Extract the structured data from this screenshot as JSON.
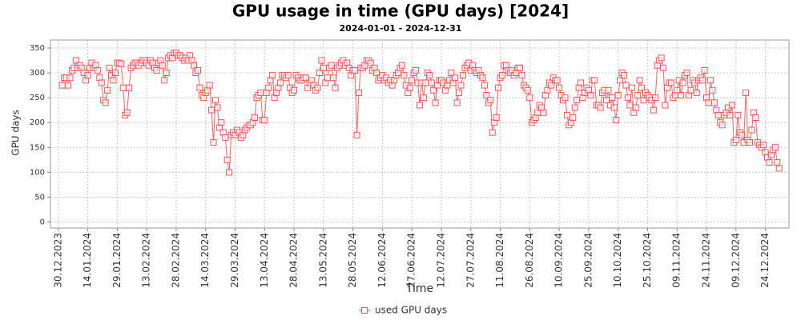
{
  "chart_data": {
    "type": "line",
    "title": "GPU usage in time (GPU days) [2024]",
    "subtitle": "2024-01-01 - 2024-12-31",
    "x_label": "Time",
    "y_label": "GPU days",
    "grid": true,
    "legend": "bottom",
    "xlim": [
      "2023-12-26",
      "2025-01-05"
    ],
    "xticks": [
      {
        "value": "2023-12-30",
        "label": "30.12.2023"
      },
      {
        "value": "2024-01-14",
        "label": "14.01.2024"
      },
      {
        "value": "2024-01-29",
        "label": "29.01.2024"
      },
      {
        "value": "2024-02-13",
        "label": "13.02.2024"
      },
      {
        "value": "2024-02-28",
        "label": "28.02.2024"
      },
      {
        "value": "2024-03-14",
        "label": "14.03.2024"
      },
      {
        "value": "2024-03-29",
        "label": "29.03.2024"
      },
      {
        "value": "2024-04-13",
        "label": "13.04.2024"
      },
      {
        "value": "2024-04-28",
        "label": "28.04.2024"
      },
      {
        "value": "2024-05-13",
        "label": "13.05.2024"
      },
      {
        "value": "2024-05-28",
        "label": "28.05.2024"
      },
      {
        "value": "2024-06-12",
        "label": "12.06.2024"
      },
      {
        "value": "2024-06-27",
        "label": "27.06.2024"
      },
      {
        "value": "2024-07-12",
        "label": "12.07.2024"
      },
      {
        "value": "2024-07-27",
        "label": "27.07.2024"
      },
      {
        "value": "2024-08-11",
        "label": "11.08.2024"
      },
      {
        "value": "2024-08-26",
        "label": "26.08.2024"
      },
      {
        "value": "2024-09-10",
        "label": "10.09.2024"
      },
      {
        "value": "2024-09-25",
        "label": "25.09.2024"
      },
      {
        "value": "2024-10-10",
        "label": "10.10.2024"
      },
      {
        "value": "2024-10-25",
        "label": "25.10.2024"
      },
      {
        "value": "2024-11-09",
        "label": "09.11.2024"
      },
      {
        "value": "2024-11-24",
        "label": "24.11.2024"
      },
      {
        "value": "2024-12-09",
        "label": "09.12.2024"
      },
      {
        "value": "2024-12-24",
        "label": "24.12.2024"
      }
    ],
    "ylim": [
      -12,
      366
    ],
    "yticks": [
      0,
      50,
      100,
      150,
      200,
      250,
      300,
      350
    ],
    "x": [
      "2024-01-01",
      "2024-01-02",
      "2024-01-03",
      "2024-01-04",
      "2024-01-05",
      "2024-01-06",
      "2024-01-07",
      "2024-01-08",
      "2024-01-09",
      "2024-01-10",
      "2024-01-11",
      "2024-01-12",
      "2024-01-13",
      "2024-01-14",
      "2024-01-15",
      "2024-01-16",
      "2024-01-17",
      "2024-01-18",
      "2024-01-19",
      "2024-01-20",
      "2024-01-21",
      "2024-01-22",
      "2024-01-23",
      "2024-01-24",
      "2024-01-25",
      "2024-01-26",
      "2024-01-27",
      "2024-01-28",
      "2024-01-29",
      "2024-01-30",
      "2024-01-31",
      "2024-02-01",
      "2024-02-02",
      "2024-02-03",
      "2024-02-04",
      "2024-02-05",
      "2024-02-06",
      "2024-02-07",
      "2024-02-08",
      "2024-02-09",
      "2024-02-10",
      "2024-02-11",
      "2024-02-12",
      "2024-02-13",
      "2024-02-14",
      "2024-02-15",
      "2024-02-16",
      "2024-02-17",
      "2024-02-18",
      "2024-02-19",
      "2024-02-20",
      "2024-02-21",
      "2024-02-22",
      "2024-02-23",
      "2024-02-24",
      "2024-02-25",
      "2024-02-26",
      "2024-02-27",
      "2024-02-28",
      "2024-02-29",
      "2024-03-01",
      "2024-03-02",
      "2024-03-03",
      "2024-03-04",
      "2024-03-05",
      "2024-03-06",
      "2024-03-07",
      "2024-03-08",
      "2024-03-09",
      "2024-03-10",
      "2024-03-11",
      "2024-03-12",
      "2024-03-13",
      "2024-03-14",
      "2024-03-15",
      "2024-03-16",
      "2024-03-17",
      "2024-03-18",
      "2024-03-19",
      "2024-03-20",
      "2024-03-21",
      "2024-03-22",
      "2024-03-23",
      "2024-03-24",
      "2024-03-25",
      "2024-03-26",
      "2024-03-27",
      "2024-03-28",
      "2024-03-29",
      "2024-03-30",
      "2024-03-31",
      "2024-04-01",
      "2024-04-02",
      "2024-04-03",
      "2024-04-04",
      "2024-04-05",
      "2024-04-06",
      "2024-04-07",
      "2024-04-08",
      "2024-04-09",
      "2024-04-10",
      "2024-04-11",
      "2024-04-12",
      "2024-04-13",
      "2024-04-14",
      "2024-04-15",
      "2024-04-16",
      "2024-04-17",
      "2024-04-18",
      "2024-04-19",
      "2024-04-20",
      "2024-04-21",
      "2024-04-22",
      "2024-04-23",
      "2024-04-24",
      "2024-04-25",
      "2024-04-26",
      "2024-04-27",
      "2024-04-28",
      "2024-04-29",
      "2024-04-30",
      "2024-05-01",
      "2024-05-02",
      "2024-05-03",
      "2024-05-04",
      "2024-05-05",
      "2024-05-06",
      "2024-05-07",
      "2024-05-08",
      "2024-05-09",
      "2024-05-10",
      "2024-05-11",
      "2024-05-12",
      "2024-05-13",
      "2024-05-14",
      "2024-05-15",
      "2024-05-16",
      "2024-05-17",
      "2024-05-18",
      "2024-05-19",
      "2024-05-20",
      "2024-05-21",
      "2024-05-22",
      "2024-05-23",
      "2024-05-24",
      "2024-05-25",
      "2024-05-26",
      "2024-05-27",
      "2024-05-28",
      "2024-05-29",
      "2024-05-30",
      "2024-05-31",
      "2024-06-01",
      "2024-06-02",
      "2024-06-03",
      "2024-06-04",
      "2024-06-05",
      "2024-06-06",
      "2024-06-07",
      "2024-06-08",
      "2024-06-09",
      "2024-06-10",
      "2024-06-11",
      "2024-06-12",
      "2024-06-13",
      "2024-06-14",
      "2024-06-15",
      "2024-06-16",
      "2024-06-17",
      "2024-06-18",
      "2024-06-19",
      "2024-06-20",
      "2024-06-21",
      "2024-06-22",
      "2024-06-23",
      "2024-06-24",
      "2024-06-25",
      "2024-06-26",
      "2024-06-27",
      "2024-06-28",
      "2024-06-29",
      "2024-06-30",
      "2024-07-01",
      "2024-07-02",
      "2024-07-03",
      "2024-07-04",
      "2024-07-05",
      "2024-07-06",
      "2024-07-07",
      "2024-07-08",
      "2024-07-09",
      "2024-07-10",
      "2024-07-11",
      "2024-07-12",
      "2024-07-13",
      "2024-07-14",
      "2024-07-15",
      "2024-07-16",
      "2024-07-17",
      "2024-07-18",
      "2024-07-19",
      "2024-07-20",
      "2024-07-21",
      "2024-07-22",
      "2024-07-23",
      "2024-07-24",
      "2024-07-25",
      "2024-07-26",
      "2024-07-27",
      "2024-07-28",
      "2024-07-29",
      "2024-07-30",
      "2024-07-31",
      "2024-08-01",
      "2024-08-02",
      "2024-08-03",
      "2024-08-04",
      "2024-08-05",
      "2024-08-06",
      "2024-08-07",
      "2024-08-08",
      "2024-08-09",
      "2024-08-10",
      "2024-08-11",
      "2024-08-12",
      "2024-08-13",
      "2024-08-14",
      "2024-08-15",
      "2024-08-16",
      "2024-08-17",
      "2024-08-18",
      "2024-08-19",
      "2024-08-20",
      "2024-08-21",
      "2024-08-22",
      "2024-08-23",
      "2024-08-24",
      "2024-08-25",
      "2024-08-26",
      "2024-08-27",
      "2024-08-28",
      "2024-08-29",
      "2024-08-30",
      "2024-08-31",
      "2024-09-01",
      "2024-09-02",
      "2024-09-03",
      "2024-09-04",
      "2024-09-05",
      "2024-09-06",
      "2024-09-07",
      "2024-09-08",
      "2024-09-09",
      "2024-09-10",
      "2024-09-11",
      "2024-09-12",
      "2024-09-13",
      "2024-09-14",
      "2024-09-15",
      "2024-09-16",
      "2024-09-17",
      "2024-09-18",
      "2024-09-19",
      "2024-09-20",
      "2024-09-21",
      "2024-09-22",
      "2024-09-23",
      "2024-09-24",
      "2024-09-25",
      "2024-09-26",
      "2024-09-27",
      "2024-09-28",
      "2024-09-29",
      "2024-09-30",
      "2024-10-01",
      "2024-10-02",
      "2024-10-03",
      "2024-10-04",
      "2024-10-05",
      "2024-10-06",
      "2024-10-07",
      "2024-10-08",
      "2024-10-09",
      "2024-10-10",
      "2024-10-11",
      "2024-10-12",
      "2024-10-13",
      "2024-10-14",
      "2024-10-15",
      "2024-10-16",
      "2024-10-17",
      "2024-10-18",
      "2024-10-19",
      "2024-10-20",
      "2024-10-21",
      "2024-10-22",
      "2024-10-23",
      "2024-10-24",
      "2024-10-25",
      "2024-10-26",
      "2024-10-27",
      "2024-10-28",
      "2024-10-29",
      "2024-10-30",
      "2024-10-31",
      "2024-11-01",
      "2024-11-02",
      "2024-11-03",
      "2024-11-04",
      "2024-11-05",
      "2024-11-06",
      "2024-11-07",
      "2024-11-08",
      "2024-11-09",
      "2024-11-10",
      "2024-11-11",
      "2024-11-12",
      "2024-11-13",
      "2024-11-14",
      "2024-11-15",
      "2024-11-16",
      "2024-11-17",
      "2024-11-18",
      "2024-11-19",
      "2024-11-20",
      "2024-11-21",
      "2024-11-22",
      "2024-11-23",
      "2024-11-24",
      "2024-11-25",
      "2024-11-26",
      "2024-11-27",
      "2024-11-28",
      "2024-11-29",
      "2024-11-30",
      "2024-12-01",
      "2024-12-02",
      "2024-12-03",
      "2024-12-04",
      "2024-12-05",
      "2024-12-06",
      "2024-12-07",
      "2024-12-08",
      "2024-12-09",
      "2024-12-10",
      "2024-12-11",
      "2024-12-12",
      "2024-12-13",
      "2024-12-14",
      "2024-12-15",
      "2024-12-16",
      "2024-12-17",
      "2024-12-18",
      "2024-12-19",
      "2024-12-20",
      "2024-12-21",
      "2024-12-22",
      "2024-12-23",
      "2024-12-24",
      "2024-12-25",
      "2024-12-26",
      "2024-12-27",
      "2024-12-28",
      "2024-12-29",
      "2024-12-30",
      "2024-12-31"
    ],
    "series": [
      {
        "name": "used GPU days",
        "color": "#f2555b",
        "values": [
          275,
          290,
          290,
          275,
          290,
          305,
          310,
          325,
          310,
          315,
          310,
          300,
          285,
          295,
          310,
          320,
          310,
          315,
          305,
          290,
          280,
          245,
          240,
          265,
          310,
          295,
          285,
          300,
          320,
          320,
          318,
          270,
          215,
          220,
          270,
          310,
          315,
          320,
          320,
          315,
          320,
          325,
          325,
          320,
          315,
          325,
          320,
          310,
          305,
          320,
          325,
          315,
          285,
          300,
          330,
          335,
          330,
          340,
          340,
          335,
          335,
          330,
          325,
          330,
          325,
          335,
          325,
          315,
          300,
          305,
          270,
          255,
          250,
          260,
          265,
          275,
          225,
          160,
          245,
          230,
          190,
          200,
          180,
          170,
          125,
          100,
          175,
          180,
          175,
          185,
          180,
          170,
          175,
          185,
          190,
          195,
          195,
          200,
          210,
          250,
          255,
          260,
          205,
          205,
          260,
          270,
          285,
          295,
          250,
          260,
          270,
          280,
          295,
          295,
          290,
          295,
          270,
          260,
          265,
          295,
          290,
          285,
          285,
          290,
          290,
          270,
          280,
          285,
          275,
          265,
          270,
          300,
          325,
          310,
          280,
          290,
          310,
          315,
          290,
          270,
          310,
          315,
          320,
          325,
          315,
          320,
          310,
          295,
          305,
          305,
          175,
          260,
          310,
          310,
          315,
          325,
          325,
          320,
          305,
          310,
          300,
          285,
          290,
          295,
          285,
          290,
          280,
          285,
          275,
          285,
          295,
          300,
          310,
          315,
          295,
          275,
          260,
          270,
          285,
          300,
          305,
          280,
          235,
          280,
          250,
          280,
          300,
          295,
          280,
          265,
          240,
          275,
          285,
          285,
          280,
          265,
          275,
          285,
          300,
          280,
          290,
          240,
          260,
          275,
          295,
          310,
          315,
          320,
          305,
          315,
          305,
          300,
          305,
          295,
          290,
          275,
          255,
          240,
          245,
          180,
          200,
          210,
          270,
          290,
          295,
          315,
          315,
          305,
          300,
          305,
          295,
          300,
          310,
          310,
          295,
          275,
          270,
          265,
          250,
          200,
          205,
          210,
          220,
          235,
          230,
          220,
          255,
          265,
          280,
          275,
          290,
          285,
          285,
          270,
          255,
          245,
          250,
          215,
          195,
          200,
          210,
          230,
          245,
          270,
          280,
          250,
          260,
          270,
          265,
          255,
          285,
          285,
          235,
          235,
          230,
          260,
          265,
          245,
          265,
          235,
          250,
          230,
          205,
          255,
          285,
          300,
          295,
          275,
          250,
          235,
          270,
          220,
          230,
          255,
          285,
          270,
          245,
          260,
          255,
          250,
          245,
          225,
          250,
          315,
          325,
          330,
          310,
          235,
          270,
          280,
          280,
          250,
          255,
          265,
          285,
          255,
          280,
          295,
          300,
          255,
          265,
          285,
          280,
          260,
          285,
          290,
          285,
          305,
          250,
          240,
          285,
          265,
          240,
          225,
          215,
          200,
          195,
          215,
          220,
          230,
          215,
          235,
          160,
          165,
          215,
          180,
          175,
          160,
          260,
          165,
          160,
          185,
          220,
          210,
          160,
          155,
          150,
          155,
          140,
          130,
          120,
          135,
          145,
          150,
          120,
          108
        ]
      }
    ]
  }
}
